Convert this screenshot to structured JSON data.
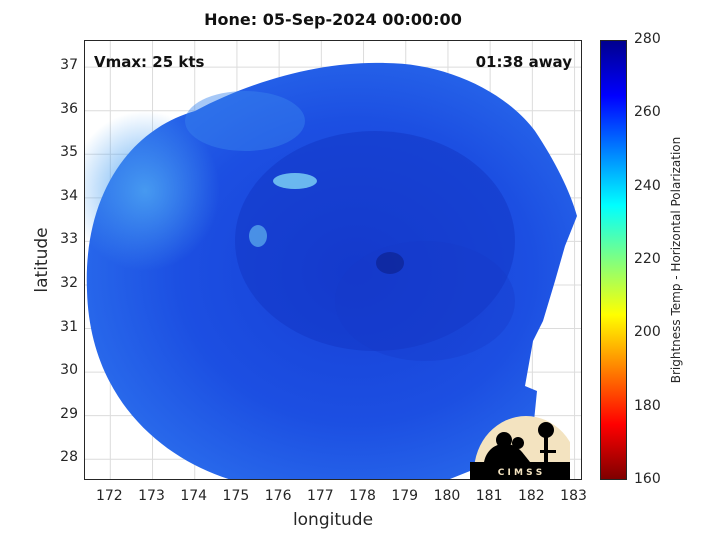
{
  "title": "Hone: 05-Sep-2024 00:00:00",
  "vmax_label": "Vmax: 25 kts",
  "away_label": "01:38 away",
  "axes": {
    "xlabel": "longitude",
    "ylabel": "latitude",
    "xlim": [
      171.4,
      183.2
    ],
    "ylim": [
      27.5,
      37.6
    ],
    "xticks": [
      "172",
      "173",
      "174",
      "175",
      "176",
      "177",
      "178",
      "179",
      "180",
      "181",
      "182",
      "183"
    ],
    "yticks": [
      "28",
      "29",
      "30",
      "31",
      "32",
      "33",
      "34",
      "35",
      "36",
      "37"
    ]
  },
  "colorbar": {
    "label": "Brightness Temp - Horizontal Polarization",
    "ticks": [
      "280",
      "260",
      "240",
      "220",
      "200",
      "180",
      "160"
    ],
    "range": [
      160,
      280
    ],
    "colors": [
      "#7f0000",
      "#ff0000",
      "#ff8000",
      "#ffff00",
      "#80ff80",
      "#00ffff",
      "#0080ff",
      "#0000ff",
      "#00008f"
    ]
  },
  "image": {
    "dominant_color": "#1a4fe0",
    "light_color": "#3b8cf0",
    "dark_color": "#102fb8",
    "storm_center": [
      178.6,
      32.2
    ]
  },
  "logo": {
    "text": "C I M S S",
    "icon": "cimss-logo-icon"
  }
}
